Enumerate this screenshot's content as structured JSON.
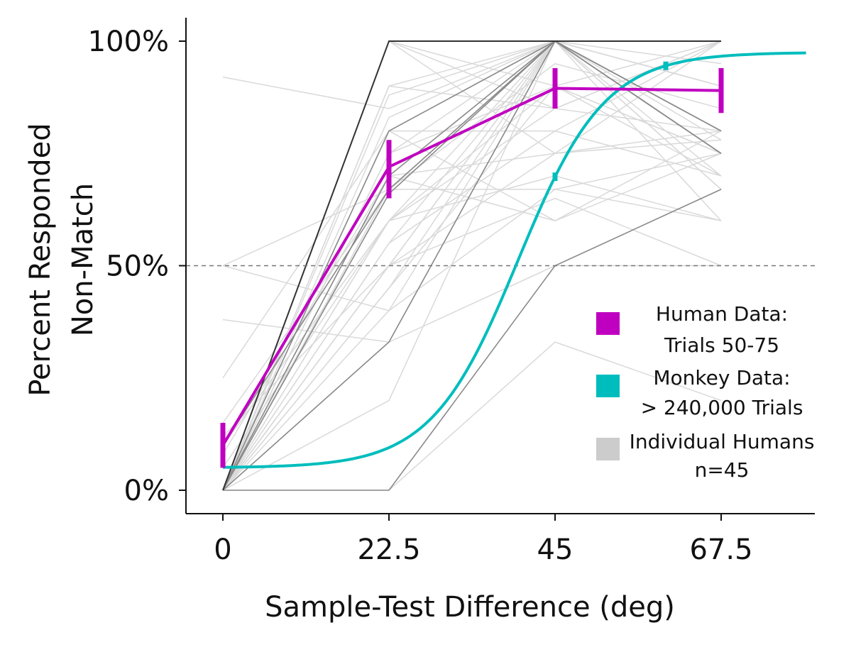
{
  "chart_data": {
    "type": "line",
    "title": "",
    "xlabel": "Sample-Test Difference (deg)",
    "ylabel_lines": [
      "Percent Responded",
      "Non-Match"
    ],
    "x_ticks": [
      0,
      22.5,
      45,
      67.5
    ],
    "x_tick_labels": [
      "0",
      "22.5",
      "45",
      "67.5"
    ],
    "y_ticks": [
      0,
      50,
      100
    ],
    "y_tick_labels": [
      "0%",
      "50%",
      "100%"
    ],
    "xlim": [
      -5,
      80
    ],
    "ylim": [
      -5,
      105
    ],
    "reference_line": {
      "y": 50,
      "style": "dashed"
    },
    "grid": false,
    "legend_position": "right",
    "legend": [
      {
        "label_lines": [
          "Human Data:",
          "Trials 50-75"
        ],
        "color": "#c000c0"
      },
      {
        "label_lines": [
          "Monkey Data:",
          "> 240,000 Trials"
        ],
        "color": "#00bdbd"
      },
      {
        "label_lines": [
          "Individual Humans",
          "n=45"
        ],
        "color": "#cccccc"
      }
    ],
    "series": [
      {
        "key": "human",
        "color": "#c000c0",
        "x": [
          0,
          22.5,
          45,
          67.5
        ],
        "y": [
          10,
          72,
          89.5,
          89
        ],
        "yerr_low": [
          5,
          65,
          85,
          84
        ],
        "yerr_high": [
          15,
          78,
          94,
          94
        ]
      },
      {
        "key": "monkey",
        "color": "#00bdbd",
        "fit": {
          "type": "logistic",
          "lower": 5,
          "upper": 97.5,
          "x50": 40,
          "slope": 0.17
        },
        "x_range": [
          0,
          79
        ],
        "points": [
          {
            "x": 45,
            "y": 63
          },
          {
            "x": 60,
            "y": 90
          }
        ]
      }
    ],
    "individual_humans": [
      {
        "y": [
          0,
          100,
          100,
          100
        ],
        "shade": "dark"
      },
      {
        "y": [
          0,
          80,
          100,
          75
        ],
        "shade": "mid"
      },
      {
        "y": [
          0,
          70,
          100,
          80
        ],
        "shade": "mid"
      },
      {
        "y": [
          0,
          66,
          100,
          75
        ],
        "shade": "mid"
      },
      {
        "y": [
          0,
          33,
          100,
          80
        ],
        "shade": "mid"
      },
      {
        "y": [
          10,
          67,
          100,
          75
        ],
        "shade": "mid"
      },
      {
        "y": [
          0,
          0,
          50,
          67
        ],
        "shade": "mid"
      },
      {
        "y": [
          0,
          75,
          90,
          70
        ],
        "shade": "light"
      },
      {
        "y": [
          0,
          60,
          100,
          60
        ],
        "shade": "light"
      },
      {
        "y": [
          0,
          90,
          100,
          100
        ],
        "shade": "light"
      },
      {
        "y": [
          0,
          100,
          85,
          80
        ],
        "shade": "light"
      },
      {
        "y": [
          0,
          50,
          75,
          78
        ],
        "shade": "light"
      },
      {
        "y": [
          0,
          0,
          33,
          20
        ],
        "shade": "light"
      },
      {
        "y": [
          0,
          20,
          100,
          100
        ],
        "shade": "light"
      },
      {
        "y": [
          0,
          40,
          100,
          90
        ],
        "shade": "light"
      },
      {
        "y": [
          0,
          55,
          80,
          70
        ],
        "shade": "light"
      },
      {
        "y": [
          0,
          88,
          100,
          78
        ],
        "shade": "light"
      },
      {
        "y": [
          0,
          83,
          100,
          90
        ],
        "shade": "light"
      },
      {
        "y": [
          0,
          100,
          90,
          100
        ],
        "shade": "light"
      },
      {
        "y": [
          0,
          50,
          65,
          50
        ],
        "shade": "light"
      },
      {
        "y": [
          0,
          80,
          60,
          75
        ],
        "shade": "light"
      },
      {
        "y": [
          0,
          67,
          100,
          67
        ],
        "shade": "light"
      },
      {
        "y": [
          0,
          45,
          100,
          80
        ],
        "shade": "light"
      },
      {
        "y": [
          0,
          100,
          100,
          90
        ],
        "shade": "light"
      },
      {
        "y": [
          5,
          60,
          90,
          75
        ],
        "shade": "light"
      },
      {
        "y": [
          8,
          70,
          75,
          80
        ],
        "shade": "light"
      },
      {
        "y": [
          10,
          60,
          85,
          100
        ],
        "shade": "light"
      },
      {
        "y": [
          12,
          50,
          100,
          67
        ],
        "shade": "light"
      },
      {
        "y": [
          15,
          67,
          67,
          75
        ],
        "shade": "light"
      },
      {
        "y": [
          25,
          80,
          80,
          100
        ],
        "shade": "light"
      },
      {
        "y": [
          38,
          33,
          100,
          90
        ],
        "shade": "light"
      },
      {
        "y": [
          50,
          40,
          67,
          60
        ],
        "shade": "light"
      },
      {
        "y": [
          50,
          67,
          100,
          75
        ],
        "shade": "light"
      },
      {
        "y": [
          92,
          85,
          100,
          80
        ],
        "shade": "light"
      },
      {
        "y": [
          0,
          33,
          50,
          50
        ],
        "shade": "light"
      },
      {
        "y": [
          0,
          67,
          95,
          85
        ],
        "shade": "light"
      },
      {
        "y": [
          0,
          80,
          100,
          70
        ],
        "shade": "light"
      },
      {
        "y": [
          0,
          60,
          70,
          60
        ],
        "shade": "light"
      },
      {
        "y": [
          0,
          75,
          100,
          95
        ],
        "shade": "light"
      },
      {
        "y": [
          0,
          55,
          100,
          100
        ],
        "shade": "light"
      },
      {
        "y": [
          0,
          90,
          85,
          100
        ],
        "shade": "light"
      },
      {
        "y": [
          0,
          45,
          90,
          75
        ],
        "shade": "light"
      },
      {
        "y": [
          0,
          100,
          75,
          100
        ],
        "shade": "light"
      },
      {
        "y": [
          0,
          70,
          60,
          80
        ],
        "shade": "light"
      },
      {
        "y": [
          0,
          50,
          100,
          75
        ],
        "shade": "light"
      }
    ]
  }
}
